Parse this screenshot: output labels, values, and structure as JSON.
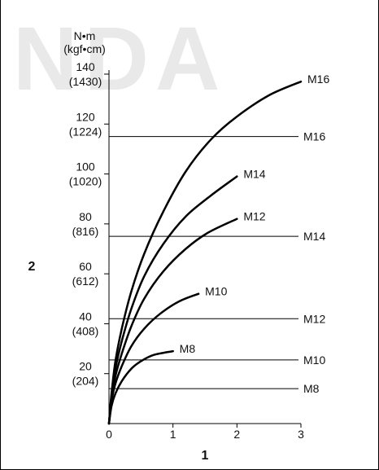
{
  "watermark": "NDA",
  "chart_data": {
    "type": "line",
    "xlim": [
      0,
      3
    ],
    "ylim": [
      0,
      140
    ],
    "xticks": [
      "0",
      "1",
      "2",
      "3"
    ],
    "x_axis_title": "1",
    "y_axis_title": "2",
    "y_unit_label_1": "N•m",
    "y_unit_label_2": "(kgf•cm)",
    "y_ticks": [
      {
        "value": 20,
        "label": "20",
        "sub": "(204)"
      },
      {
        "value": 40,
        "label": "40",
        "sub": "(408)"
      },
      {
        "value": 60,
        "label": "60",
        "sub": "(612)"
      },
      {
        "value": 80,
        "label": "80",
        "sub": "(816)"
      },
      {
        "value": 100,
        "label": "100",
        "sub": "(1020)"
      },
      {
        "value": 120,
        "label": "120",
        "sub": "(1224)"
      },
      {
        "value": 140,
        "label": "140",
        "sub": "(1430)"
      }
    ],
    "curves": [
      {
        "name": "M8",
        "points": [
          [
            0,
            0
          ],
          [
            0.04,
            7
          ],
          [
            0.1,
            12
          ],
          [
            0.2,
            17
          ],
          [
            0.35,
            22
          ],
          [
            0.5,
            25
          ],
          [
            0.7,
            27.5
          ],
          [
            1.0,
            29
          ]
        ]
      },
      {
        "name": "M10",
        "points": [
          [
            0,
            0
          ],
          [
            0.04,
            9
          ],
          [
            0.1,
            16
          ],
          [
            0.2,
            23
          ],
          [
            0.35,
            31
          ],
          [
            0.55,
            38
          ],
          [
            0.8,
            44
          ],
          [
            1.1,
            49
          ],
          [
            1.4,
            52
          ]
        ]
      },
      {
        "name": "M12",
        "points": [
          [
            0,
            0
          ],
          [
            0.04,
            10
          ],
          [
            0.1,
            19
          ],
          [
            0.2,
            28
          ],
          [
            0.35,
            39
          ],
          [
            0.55,
            50
          ],
          [
            0.85,
            61
          ],
          [
            1.2,
            70
          ],
          [
            1.55,
            76.5
          ],
          [
            2.0,
            82
          ]
        ]
      },
      {
        "name": "M14",
        "points": [
          [
            0,
            0
          ],
          [
            0.04,
            11
          ],
          [
            0.1,
            22
          ],
          [
            0.2,
            33
          ],
          [
            0.35,
            46
          ],
          [
            0.55,
            59
          ],
          [
            0.85,
            72
          ],
          [
            1.2,
            83
          ],
          [
            1.6,
            91.5
          ],
          [
            2.0,
            99
          ]
        ]
      },
      {
        "name": "M16",
        "points": [
          [
            0,
            0
          ],
          [
            0.04,
            12
          ],
          [
            0.1,
            25
          ],
          [
            0.2,
            38
          ],
          [
            0.35,
            53
          ],
          [
            0.55,
            68
          ],
          [
            0.85,
            85
          ],
          [
            1.2,
            101
          ],
          [
            1.6,
            114
          ],
          [
            2.0,
            123
          ],
          [
            2.5,
            131.5
          ],
          [
            3.0,
            137
          ]
        ]
      }
    ],
    "hlines": [
      {
        "name": "M16",
        "y": 115
      },
      {
        "name": "M14",
        "y": 75
      },
      {
        "name": "M12",
        "y": 42
      },
      {
        "name": "M10",
        "y": 25.5
      },
      {
        "name": "M8",
        "y": 14
      }
    ]
  }
}
